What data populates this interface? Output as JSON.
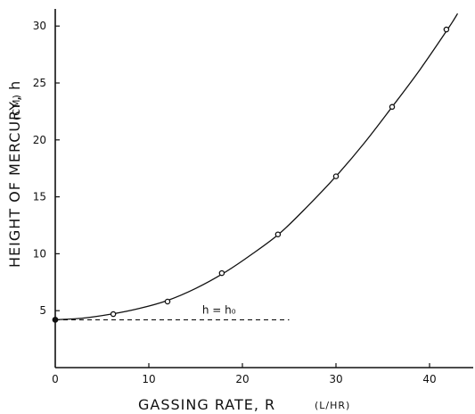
{
  "chart_data": {
    "type": "scatter",
    "xlabel": "GASSING RATE, R",
    "xunit": "(L/HR)",
    "ylabel": "HEIGHT OF MERCURY, h",
    "yunit": "(CM)",
    "xlim": [
      0,
      46
    ],
    "ylim": [
      0,
      31.5
    ],
    "xticks": [
      0,
      10,
      20,
      30,
      40
    ],
    "xtick_labels": [
      "0",
      "10",
      "20",
      "30",
      "40"
    ],
    "yticks": [
      5,
      10,
      15,
      20,
      25,
      30
    ],
    "ytick_labels": [
      "5",
      "10",
      "15",
      "20",
      "25",
      "30"
    ],
    "grid": false,
    "series": [
      {
        "kind": "points",
        "x": [
          0,
          6.2,
          12,
          17.8,
          23.8,
          30,
          36,
          41.8
        ],
        "y": [
          4.2,
          4.7,
          5.8,
          8.3,
          11.7,
          16.8,
          22.9,
          29.7
        ]
      },
      {
        "kind": "fitted-curve",
        "x": [
          0,
          3,
          6,
          9,
          12,
          15,
          18,
          21,
          24,
          27,
          30,
          33,
          36,
          39,
          42,
          43
        ],
        "y": [
          4.2,
          4.35,
          4.7,
          5.2,
          5.9,
          6.95,
          8.3,
          9.95,
          11.8,
          14.2,
          16.8,
          19.7,
          22.9,
          26.2,
          29.8,
          31.1
        ]
      },
      {
        "kind": "reference-line",
        "x": [
          0,
          25
        ],
        "y": [
          4.2,
          4.2
        ]
      }
    ],
    "annotations": [
      {
        "text": "h = h₀",
        "x": 17.5,
        "y": 4.75
      }
    ]
  }
}
